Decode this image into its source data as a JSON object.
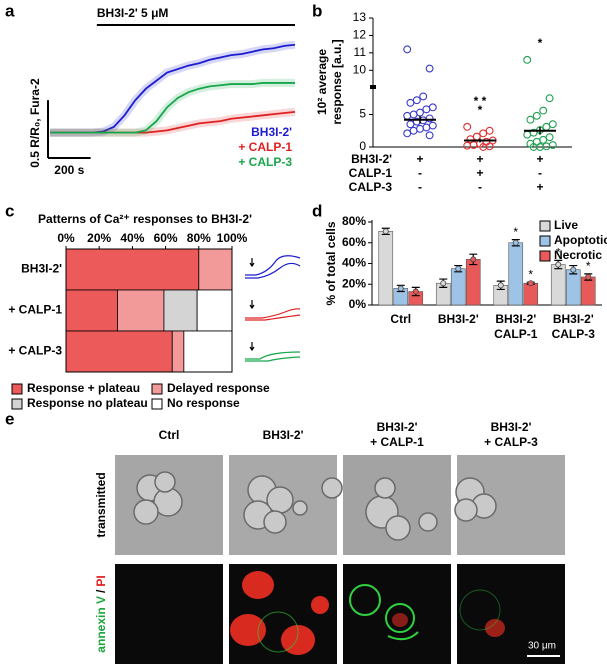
{
  "chart_data": [
    {
      "type": "line",
      "panel": "a",
      "annotation": "BH3I-2' 5 μM",
      "annotation_x": [
        220,
        1150
      ],
      "x": [
        0,
        50,
        100,
        150,
        200,
        250,
        300,
        350,
        400,
        450,
        500,
        550,
        600,
        650,
        700,
        750,
        800,
        850,
        900,
        950,
        1000,
        1050,
        1100,
        1150
      ],
      "xlim": [
        0,
        1150
      ],
      "ylim": [
        -0.15,
        1.0
      ],
      "scale_y": {
        "value": 0.5,
        "label": "0.5 R/R₀, Fura-2"
      },
      "scale_x": {
        "value": 200,
        "label": "200 s"
      },
      "series": [
        {
          "name": "BH3I-2'",
          "color": "#1c1cd0",
          "values": [
            0,
            0,
            0,
            0,
            0,
            0.01,
            0.05,
            0.15,
            0.28,
            0.38,
            0.45,
            0.52,
            0.55,
            0.58,
            0.6,
            0.63,
            0.65,
            0.67,
            0.68,
            0.7,
            0.72,
            0.73,
            0.75,
            0.76
          ]
        },
        {
          "name": "+ CALP-1",
          "color": "#e02020",
          "values": [
            0,
            0,
            0,
            0,
            0,
            0,
            0,
            0,
            0,
            0,
            0.01,
            0.02,
            0.04,
            0.06,
            0.08,
            0.09,
            0.1,
            0.12,
            0.13,
            0.14,
            0.15,
            0.16,
            0.17,
            0.18
          ]
        },
        {
          "name": "+ CALP-3",
          "color": "#17a64a",
          "values": [
            0,
            0,
            0,
            0,
            0,
            0,
            0,
            0,
            0,
            0.02,
            0.1,
            0.22,
            0.3,
            0.35,
            0.38,
            0.4,
            0.41,
            0.42,
            0.42,
            0.42,
            0.43,
            0.43,
            0.43,
            0.43
          ]
        }
      ]
    },
    {
      "type": "strip",
      "panel": "b",
      "ylabel": [
        "10² average",
        "response [a.u.]"
      ],
      "ylim": [
        0,
        13
      ],
      "ybreak": [
        8,
        9.5
      ],
      "yticks": [
        0,
        5,
        10,
        11,
        12,
        13
      ],
      "row_labels": [
        "BH3I-2'",
        "CALP-1",
        "CALP-3"
      ],
      "table": [
        [
          "+",
          "+",
          "+"
        ],
        [
          "-",
          "+",
          "-"
        ],
        [
          "-",
          "-",
          "+"
        ]
      ],
      "means": [
        4.2,
        1.0,
        2.5
      ],
      "errors": [
        0.6,
        0.3,
        0.6
      ],
      "annotations": [
        null,
        [
          "* *",
          "*"
        ],
        [
          "*"
        ]
      ],
      "series": [
        {
          "color": "#3a3acc",
          "values": [
            11.2,
            10.1,
            8.5,
            7.2,
            6.8,
            6.1,
            5.8,
            5.3,
            5.0,
            4.8,
            4.4,
            4.1,
            3.9,
            3.5,
            3.3,
            3.0,
            2.8,
            2.5,
            2.1,
            1.8
          ]
        },
        {
          "color": "#e03030",
          "values": [
            3.1,
            2.5,
            2.1,
            1.6,
            1.2,
            1.0,
            0.8,
            0.5,
            0.3,
            0.2,
            0.1,
            0
          ]
        },
        {
          "color": "#20a050",
          "values": [
            10.6,
            7.5,
            5.6,
            4.8,
            4.2,
            3.5,
            3.1,
            2.6,
            2.2,
            1.9,
            1.5,
            1.1,
            0.8,
            0.5,
            0.3,
            0.1,
            0,
            0
          ]
        }
      ]
    },
    {
      "type": "stacked-hbar",
      "panel": "c",
      "title": "Patterns of Ca²⁺ responses to BH3I-2'",
      "categories": [
        "BH3I-2'",
        "+ CALP-1",
        "+ CALP-3"
      ],
      "xlim": [
        0,
        100
      ],
      "xticks": [
        {
          "value": 0,
          "label": "0%"
        },
        {
          "value": 20,
          "label": "20%"
        },
        {
          "value": 40,
          "label": "40%"
        },
        {
          "value": 60,
          "label": "60%"
        },
        {
          "value": 80,
          "label": "80%"
        },
        {
          "value": 100,
          "label": "100%"
        }
      ],
      "series": [
        {
          "name": "Response + plateau",
          "color": "#ec5a5a",
          "values": [
            80,
            31,
            64
          ]
        },
        {
          "name": "Delayed response",
          "color": "#f29a9a",
          "values": [
            20,
            28,
            7
          ]
        },
        {
          "name": "Response no plateau",
          "color": "#d4d4d4",
          "values": [
            0,
            20,
            0
          ]
        },
        {
          "name": "No response",
          "color": "#ffffff",
          "values": [
            0,
            21,
            29
          ]
        }
      ]
    },
    {
      "type": "bar",
      "panel": "d",
      "ylabel": "% of total cells",
      "categories": [
        [
          "Ctrl"
        ],
        [
          "BH3I-2'"
        ],
        [
          "BH3I-2'",
          "CALP-1"
        ],
        [
          "BH3I-2'",
          "CALP-3"
        ]
      ],
      "ylim": [
        0,
        80
      ],
      "yticks": [
        {
          "value": 0,
          "label": "0%"
        },
        {
          "value": 20,
          "label": "20%"
        },
        {
          "value": 40,
          "label": "40%"
        },
        {
          "value": 60,
          "label": "60%"
        },
        {
          "value": 80,
          "label": "80%"
        }
      ],
      "series": [
        {
          "name": "Live",
          "color": "#d9d9d9",
          "values": [
            71,
            21,
            19,
            39
          ],
          "errors": [
            3,
            4,
            4,
            4
          ],
          "significance": [
            null,
            null,
            null,
            "*"
          ]
        },
        {
          "name": "Apoptotic",
          "color": "#9dc3e6",
          "values": [
            16,
            35,
            60,
            34
          ],
          "errors": [
            3,
            3,
            3,
            4
          ],
          "significance": [
            null,
            null,
            "*",
            null
          ]
        },
        {
          "name": "Necrotic",
          "color": "#e85a5a",
          "values": [
            13,
            44,
            21,
            27
          ],
          "errors": [
            4,
            5,
            1,
            3
          ],
          "significance": [
            null,
            null,
            "*",
            "*"
          ]
        }
      ]
    }
  ],
  "panel_e": {
    "panel": "e",
    "columns": [
      [
        "Ctrl"
      ],
      [
        "BH3I-2'"
      ],
      [
        "BH3I-2'",
        "+ CALP-1"
      ],
      [
        "BH3I-2'",
        "+ CALP-3"
      ]
    ],
    "rows": [
      [
        "transmitted"
      ],
      [
        "annexin V",
        "/",
        "PI"
      ]
    ],
    "scale_bar": "30 μm"
  }
}
